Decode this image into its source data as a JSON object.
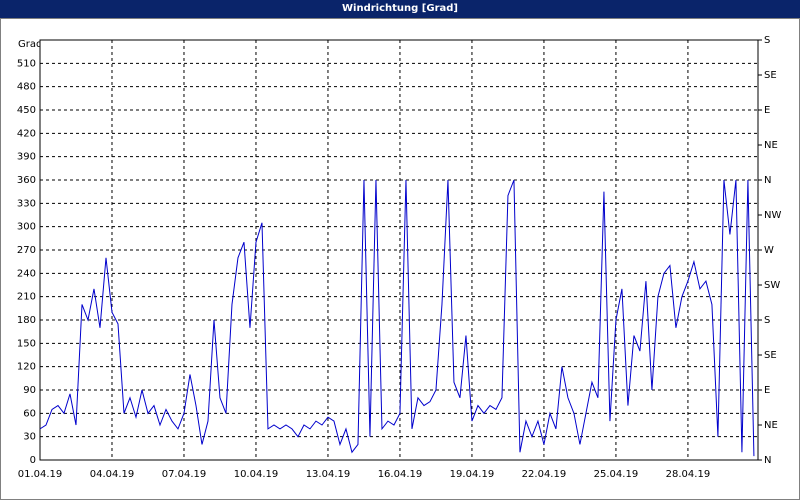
{
  "chart_data": {
    "type": "line",
    "title": "Windrichtung [Grad]",
    "y_label": "Grad",
    "xlim": [
      0,
      29.92
    ],
    "xticks": [
      {
        "value": 0,
        "label": "01.04.19"
      },
      {
        "value": 3,
        "label": "04.04.19"
      },
      {
        "value": 6,
        "label": "07.04.19"
      },
      {
        "value": 9,
        "label": "10.04.19"
      },
      {
        "value": 12,
        "label": "13.04.19"
      },
      {
        "value": 15,
        "label": "16.04.19"
      },
      {
        "value": 18,
        "label": "19.04.19"
      },
      {
        "value": 21,
        "label": "22.04.19"
      },
      {
        "value": 24,
        "label": "25.04.19"
      },
      {
        "value": 27,
        "label": "28.04.19"
      }
    ],
    "ylim": [
      0,
      540
    ],
    "yticks": [
      0,
      30,
      60,
      90,
      120,
      150,
      180,
      210,
      240,
      270,
      300,
      330,
      360,
      390,
      420,
      450,
      480,
      510
    ],
    "y2lim": [
      0,
      540
    ],
    "y2ticks": [
      {
        "value": 0,
        "label": "N"
      },
      {
        "value": 45,
        "label": "NE"
      },
      {
        "value": 90,
        "label": "E"
      },
      {
        "value": 135,
        "label": "SE"
      },
      {
        "value": 180,
        "label": "S"
      },
      {
        "value": 225,
        "label": "SW"
      },
      {
        "value": 270,
        "label": "W"
      },
      {
        "value": 315,
        "label": "NW"
      },
      {
        "value": 360,
        "label": "N"
      },
      {
        "value": 405,
        "label": "NE"
      },
      {
        "value": 450,
        "label": "E"
      },
      {
        "value": 495,
        "label": "SE"
      },
      {
        "value": 540,
        "label": "S"
      }
    ],
    "grid": true,
    "color": "#0000cc",
    "x": [
      0,
      0.25,
      0.5,
      0.75,
      1,
      1.25,
      1.5,
      1.75,
      2,
      2.25,
      2.5,
      2.75,
      3,
      3.25,
      3.5,
      3.75,
      4,
      4.25,
      4.5,
      4.75,
      5,
      5.25,
      5.5,
      5.75,
      6,
      6.25,
      6.5,
      6.75,
      7,
      7.25,
      7.5,
      7.75,
      8,
      8.25,
      8.5,
      8.75,
      9,
      9.25,
      9.5,
      9.75,
      10,
      10.25,
      10.5,
      10.75,
      11,
      11.25,
      11.5,
      11.75,
      12,
      12.25,
      12.5,
      12.75,
      13,
      13.25,
      13.5,
      13.75,
      14,
      14.25,
      14.5,
      14.75,
      15,
      15.25,
      15.5,
      15.75,
      16,
      16.25,
      16.5,
      16.75,
      17,
      17.25,
      17.5,
      17.75,
      18,
      18.25,
      18.5,
      18.75,
      19,
      19.25,
      19.5,
      19.75,
      20,
      20.25,
      20.5,
      20.75,
      21,
      21.25,
      21.5,
      21.75,
      22,
      22.25,
      22.5,
      22.75,
      23,
      23.25,
      23.5,
      23.75,
      24,
      24.25,
      24.5,
      24.75,
      25,
      25.25,
      25.5,
      25.75,
      26,
      26.25,
      26.5,
      26.75,
      27,
      27.25,
      27.5,
      27.75,
      28,
      28.25,
      28.5,
      28.75,
      29,
      29.25,
      29.5,
      29.75
    ],
    "values": [
      40,
      45,
      65,
      70,
      60,
      85,
      45,
      200,
      180,
      220,
      170,
      260,
      190,
      175,
      60,
      80,
      55,
      90,
      60,
      70,
      45,
      65,
      50,
      40,
      60,
      110,
      70,
      20,
      50,
      180,
      80,
      60,
      200,
      260,
      280,
      170,
      280,
      305,
      40,
      45,
      40,
      45,
      40,
      30,
      45,
      40,
      50,
      45,
      55,
      50,
      20,
      40,
      10,
      20,
      360,
      30,
      360,
      40,
      50,
      45,
      60,
      360,
      40,
      80,
      70,
      75,
      90,
      200,
      360,
      100,
      80,
      160,
      50,
      70,
      60,
      70,
      65,
      80,
      340,
      360,
      10,
      50,
      30,
      50,
      20,
      60,
      40,
      120,
      80,
      60,
      20,
      60,
      100,
      80,
      345,
      50,
      180,
      220,
      70,
      160,
      140,
      230,
      90,
      210,
      240,
      250,
      170,
      210,
      230,
      255,
      220,
      230,
      200,
      30,
      360,
      290,
      360,
      10,
      360,
      5
    ]
  }
}
